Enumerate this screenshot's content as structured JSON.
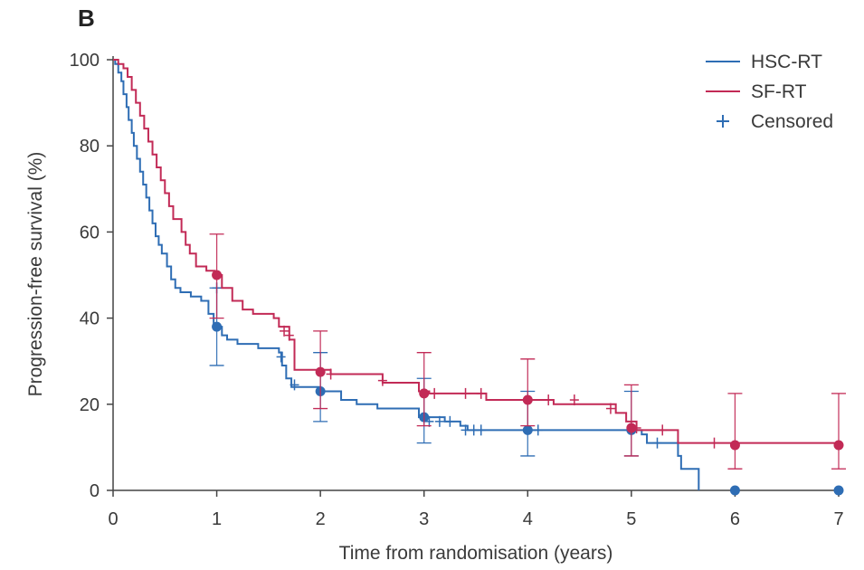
{
  "panel_label": "B",
  "chart_data": {
    "type": "line",
    "subtype": "kaplan-meier",
    "xlabel": "Time from randomisation (years)",
    "ylabel": "Progression-free survival (%)",
    "xlim": [
      0,
      7
    ],
    "ylim": [
      0,
      100
    ],
    "x_ticks": [
      0,
      1,
      2,
      3,
      4,
      5,
      6,
      7
    ],
    "y_ticks": [
      0,
      20,
      40,
      60,
      80,
      100
    ],
    "grid": false,
    "legend_position": "top-right",
    "legend": [
      {
        "label": "HSC-RT",
        "kind": "line",
        "color": "#2e6db4"
      },
      {
        "label": "SF-RT",
        "kind": "line",
        "color": "#c22a56"
      },
      {
        "label": "Censored",
        "kind": "marker",
        "color": "#2e6db4"
      }
    ],
    "series": [
      {
        "name": "HSC-RT",
        "color": "#2e6db4",
        "steps": [
          [
            0,
            100
          ],
          [
            0.02,
            99
          ],
          [
            0.05,
            97
          ],
          [
            0.08,
            95
          ],
          [
            0.1,
            92
          ],
          [
            0.13,
            89
          ],
          [
            0.15,
            86
          ],
          [
            0.18,
            83
          ],
          [
            0.2,
            80
          ],
          [
            0.23,
            77
          ],
          [
            0.26,
            74
          ],
          [
            0.29,
            71
          ],
          [
            0.32,
            68
          ],
          [
            0.35,
            65
          ],
          [
            0.38,
            62
          ],
          [
            0.41,
            59
          ],
          [
            0.44,
            57
          ],
          [
            0.47,
            55
          ],
          [
            0.52,
            52
          ],
          [
            0.56,
            49
          ],
          [
            0.6,
            47
          ],
          [
            0.65,
            46
          ],
          [
            0.75,
            45
          ],
          [
            0.85,
            44
          ],
          [
            0.92,
            41
          ],
          [
            0.97,
            38
          ],
          [
            1.05,
            36
          ],
          [
            1.1,
            35
          ],
          [
            1.2,
            34
          ],
          [
            1.4,
            33
          ],
          [
            1.6,
            32
          ],
          [
            1.63,
            29
          ],
          [
            1.67,
            26
          ],
          [
            1.72,
            24
          ],
          [
            2.0,
            23
          ],
          [
            2.2,
            21
          ],
          [
            2.35,
            20
          ],
          [
            2.55,
            19
          ],
          [
            2.95,
            17
          ],
          [
            3.2,
            16
          ],
          [
            3.35,
            15
          ],
          [
            3.42,
            14
          ],
          [
            5.1,
            13
          ],
          [
            5.15,
            11
          ],
          [
            5.45,
            8
          ],
          [
            5.48,
            5
          ],
          [
            5.65,
            0
          ]
        ],
        "censored": [
          [
            1.0,
            47
          ],
          [
            1.62,
            31
          ],
          [
            1.75,
            24.5
          ],
          [
            3.05,
            16
          ],
          [
            3.15,
            16
          ],
          [
            3.25,
            16
          ],
          [
            3.4,
            14
          ],
          [
            3.48,
            14
          ],
          [
            3.55,
            14
          ],
          [
            4.1,
            14
          ],
          [
            5.25,
            11
          ]
        ],
        "points": [
          [
            1,
            38
          ],
          [
            2,
            23
          ],
          [
            3,
            17
          ],
          [
            4,
            14
          ],
          [
            5,
            14
          ],
          [
            6,
            0
          ],
          [
            7,
            0
          ]
        ],
        "ci": [
          [
            1,
            29,
            47
          ],
          [
            2,
            16,
            32
          ],
          [
            3,
            11,
            26
          ],
          [
            4,
            8,
            23
          ],
          [
            5,
            8,
            23
          ]
        ]
      },
      {
        "name": "SF-RT",
        "color": "#c22a56",
        "steps": [
          [
            0,
            100
          ],
          [
            0.05,
            99
          ],
          [
            0.1,
            98
          ],
          [
            0.14,
            96
          ],
          [
            0.18,
            93
          ],
          [
            0.22,
            90
          ],
          [
            0.26,
            87
          ],
          [
            0.3,
            84
          ],
          [
            0.34,
            81
          ],
          [
            0.38,
            78
          ],
          [
            0.42,
            75
          ],
          [
            0.46,
            72
          ],
          [
            0.5,
            69
          ],
          [
            0.54,
            66
          ],
          [
            0.58,
            63
          ],
          [
            0.66,
            60
          ],
          [
            0.7,
            57
          ],
          [
            0.74,
            55
          ],
          [
            0.8,
            52
          ],
          [
            0.9,
            51
          ],
          [
            0.98,
            50
          ],
          [
            1.05,
            47
          ],
          [
            1.15,
            44
          ],
          [
            1.25,
            42
          ],
          [
            1.35,
            41
          ],
          [
            1.55,
            40
          ],
          [
            1.6,
            38
          ],
          [
            1.7,
            35
          ],
          [
            1.75,
            28
          ],
          [
            2.1,
            27
          ],
          [
            2.6,
            25
          ],
          [
            2.95,
            23
          ],
          [
            3.05,
            22.5
          ],
          [
            3.6,
            21
          ],
          [
            4.25,
            20
          ],
          [
            4.85,
            18
          ],
          [
            4.95,
            16
          ],
          [
            5.05,
            14
          ],
          [
            5.45,
            11
          ],
          [
            6.0,
            11
          ],
          [
            7.0,
            11
          ]
        ],
        "censored": [
          [
            1.65,
            37
          ],
          [
            1.7,
            36
          ],
          [
            2.1,
            27
          ],
          [
            2.6,
            25.5
          ],
          [
            3.1,
            22.5
          ],
          [
            3.4,
            22.5
          ],
          [
            3.55,
            22.5
          ],
          [
            4.2,
            21
          ],
          [
            4.45,
            21
          ],
          [
            4.8,
            19
          ],
          [
            5.05,
            14.5
          ],
          [
            5.3,
            14
          ],
          [
            5.8,
            11
          ]
        ],
        "points": [
          [
            1,
            50
          ],
          [
            2,
            27.5
          ],
          [
            3,
            22.5
          ],
          [
            4,
            21
          ],
          [
            5,
            14.5
          ],
          [
            6,
            10.5
          ],
          [
            7,
            10.5
          ]
        ],
        "ci": [
          [
            1,
            40,
            59.5
          ],
          [
            2,
            19,
            37
          ],
          [
            3,
            15,
            32
          ],
          [
            4,
            15,
            30.5
          ],
          [
            5,
            8,
            24.5
          ],
          [
            6,
            5,
            22.5
          ],
          [
            7,
            5,
            22.5
          ]
        ]
      }
    ]
  }
}
